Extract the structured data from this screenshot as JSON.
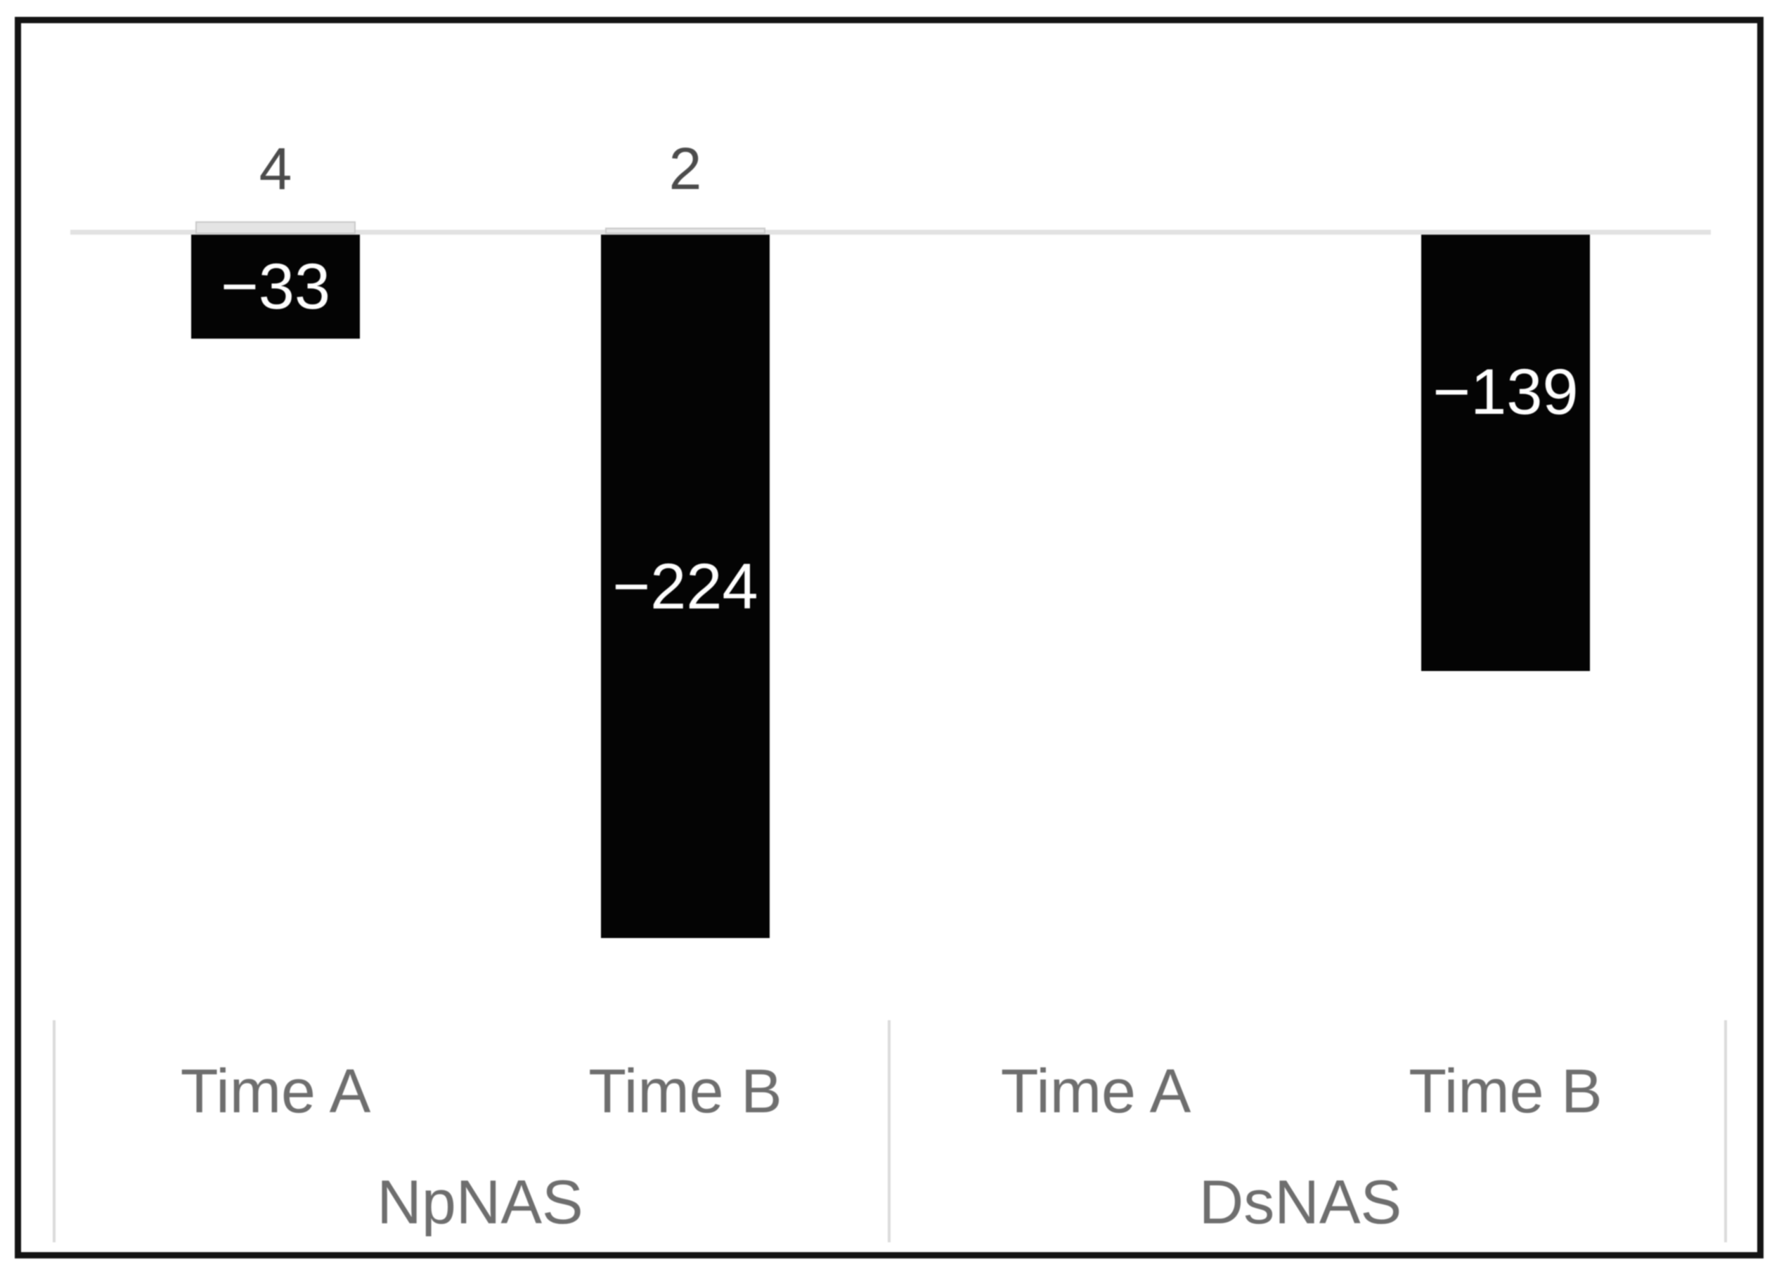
{
  "chart_data": {
    "type": "bar",
    "orientation": "vertical",
    "title": "",
    "legend": "none",
    "value_axis": {
      "visible": false,
      "zero_line": true,
      "ylim": [
        -260,
        40
      ]
    },
    "axis": {
      "categories": [
        "Time A",
        "Time B",
        "Time A",
        "Time B"
      ],
      "groups": [
        "NpNAS",
        "DsNAS"
      ]
    },
    "series": [
      {
        "name": "positive-series",
        "color": "#e4e4e4",
        "values": [
          4,
          2,
          null,
          null
        ]
      },
      {
        "name": "negative-series",
        "color": "#040404",
        "values": [
          -33,
          -224,
          null,
          -139
        ]
      }
    ],
    "points": [
      {
        "group": "NpNAS",
        "category": "Time A",
        "pos_value": 4,
        "pos_label": "4",
        "neg_value": -33,
        "neg_label": "−33",
        "neg_label_fraction": 0.5
      },
      {
        "group": "NpNAS",
        "category": "Time B",
        "pos_value": 2,
        "pos_label": "2",
        "neg_value": -224,
        "neg_label": "−224",
        "neg_label_fraction": 0.5
      },
      {
        "group": "DsNAS",
        "category": "Time A",
        "pos_value": null,
        "pos_label": "",
        "neg_value": null,
        "neg_label": "",
        "neg_label_fraction": 0.5
      },
      {
        "group": "DsNAS",
        "category": "Time B",
        "pos_value": null,
        "pos_label": "",
        "neg_value": -139,
        "neg_label": "−139",
        "neg_label_fraction": 0.36
      }
    ],
    "colors": {
      "background": "#ffffff",
      "frame": "#141414",
      "bar_negative": "#040404",
      "bar_positive_fill": "#e4e4e4",
      "bar_positive_border": "#c9c9c9",
      "zero_line": "#e2e2e2",
      "separator": "#dbdbdb",
      "category_label": "#6e6e6e",
      "group_label": "#6e6e6e",
      "above_label": "#4b4b4b",
      "data_label": "#ffffff"
    }
  }
}
